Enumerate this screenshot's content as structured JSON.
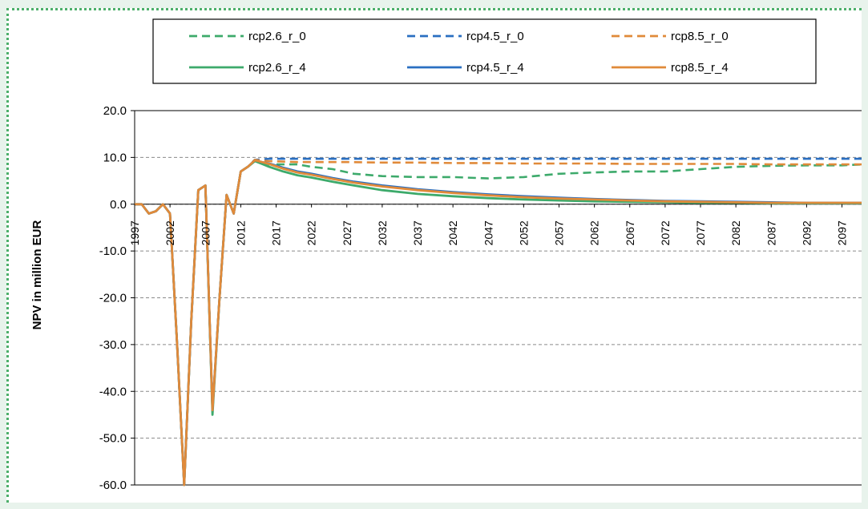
{
  "chart_data": {
    "type": "line",
    "ylabel": "NPV in million EUR",
    "ylim": [
      -60,
      20
    ],
    "yticks": [
      "20.0",
      "10.0",
      "0.0",
      "-10.0",
      "-20.0",
      "-30.0",
      "-40.0",
      "-50.0",
      "-60.0"
    ],
    "ytick_values": [
      20,
      10,
      0,
      -10,
      -20,
      -30,
      -40,
      -50,
      -60
    ],
    "xlim": [
      1997,
      2100
    ],
    "xticks": [
      "1997",
      "2002",
      "2007",
      "2012",
      "2017",
      "2022",
      "2027",
      "2032",
      "2037",
      "2042",
      "2047",
      "2052",
      "2057",
      "2062",
      "2067",
      "2072",
      "2077",
      "2082",
      "2087",
      "2092",
      "2097"
    ],
    "grid": "horizontal dashed",
    "legend_position": "top",
    "series": [
      {
        "name": "rcp2.6_r_0",
        "color": "#3daa6b",
        "dash": true,
        "x": [
          1997,
          1998,
          1999,
          2000,
          2001,
          2002,
          2003,
          2004,
          2005,
          2006,
          2007,
          2008,
          2009,
          2010,
          2011,
          2012,
          2013,
          2014,
          2015,
          2016,
          2018,
          2020,
          2022,
          2025,
          2028,
          2032,
          2037,
          2042,
          2047,
          2052,
          2057,
          2062,
          2067,
          2072,
          2077,
          2082,
          2087,
          2092,
          2097,
          2100
        ],
        "y": [
          0,
          0,
          -2,
          -1.5,
          0,
          -2,
          -30,
          -60,
          -25,
          3,
          4,
          -44,
          -20,
          2,
          -2,
          7,
          8,
          9.5,
          9,
          8.5,
          8.5,
          8.5,
          8,
          7.5,
          6.5,
          6,
          5.8,
          5.8,
          5.5,
          5.8,
          6.5,
          6.8,
          7,
          7,
          7.5,
          8,
          8.2,
          8.3,
          8.3,
          8.5
        ]
      },
      {
        "name": "rcp4.5_r_0",
        "color": "#2a6fc1",
        "dash": true,
        "x": [
          1997,
          1998,
          1999,
          2000,
          2001,
          2002,
          2003,
          2004,
          2005,
          2006,
          2007,
          2008,
          2009,
          2010,
          2011,
          2012,
          2013,
          2014,
          2015,
          2016,
          2018,
          2020,
          2022,
          2027,
          2032,
          2037,
          2042,
          2047,
          2052,
          2057,
          2062,
          2067,
          2072,
          2077,
          2082,
          2087,
          2092,
          2097,
          2100
        ],
        "y": [
          0,
          0,
          -2,
          -1.5,
          0,
          -2,
          -30,
          -60,
          -25,
          3,
          4,
          -44,
          -20,
          2,
          -2,
          7,
          8,
          9.5,
          9.6,
          9.7,
          9.7,
          9.7,
          9.7,
          9.7,
          9.7,
          9.7,
          9.7,
          9.7,
          9.7,
          9.7,
          9.7,
          9.7,
          9.7,
          9.7,
          9.7,
          9.7,
          9.7,
          9.7,
          9.7
        ]
      },
      {
        "name": "rcp8.5_r_0",
        "color": "#e08a3a",
        "dash": true,
        "x": [
          1997,
          1998,
          1999,
          2000,
          2001,
          2002,
          2003,
          2004,
          2005,
          2006,
          2007,
          2008,
          2009,
          2010,
          2011,
          2012,
          2013,
          2014,
          2015,
          2016,
          2018,
          2020,
          2022,
          2027,
          2032,
          2037,
          2042,
          2047,
          2052,
          2057,
          2062,
          2067,
          2072,
          2077,
          2082,
          2087,
          2092,
          2097,
          2100
        ],
        "y": [
          0,
          0,
          -2,
          -1.5,
          0,
          -2,
          -30,
          -60,
          -25,
          3,
          4,
          -44,
          -20,
          2,
          -2,
          7,
          8,
          9.5,
          9.3,
          9.2,
          9.1,
          9,
          9,
          9,
          8.9,
          8.9,
          8.8,
          8.8,
          8.7,
          8.7,
          8.7,
          8.6,
          8.6,
          8.6,
          8.6,
          8.5,
          8.5,
          8.5,
          8.5
        ]
      },
      {
        "name": "rcp2.6_r_4",
        "color": "#3daa6b",
        "dash": false,
        "x": [
          1997,
          1998,
          1999,
          2000,
          2001,
          2002,
          2003,
          2004,
          2005,
          2006,
          2007,
          2008,
          2009,
          2010,
          2011,
          2012,
          2013,
          2014,
          2015,
          2016,
          2018,
          2020,
          2022,
          2025,
          2028,
          2032,
          2037,
          2042,
          2047,
          2052,
          2057,
          2062,
          2067,
          2072,
          2077,
          2082,
          2087,
          2092,
          2097,
          2100
        ],
        "y": [
          0,
          0,
          -2,
          -1.5,
          0,
          -2,
          -30,
          -60,
          -25,
          3,
          4,
          -45,
          -20,
          2,
          -2,
          7,
          8,
          9.2,
          8.6,
          8,
          7,
          6.2,
          5.7,
          4.8,
          4,
          3,
          2.2,
          1.7,
          1.3,
          1,
          0.8,
          0.6,
          0.5,
          0.4,
          0.3,
          0.3,
          0.2,
          0.2,
          0.2,
          0.2
        ]
      },
      {
        "name": "rcp4.5_r_4",
        "color": "#2a6fc1",
        "dash": false,
        "x": [
          1997,
          1998,
          1999,
          2000,
          2001,
          2002,
          2003,
          2004,
          2005,
          2006,
          2007,
          2008,
          2009,
          2010,
          2011,
          2012,
          2013,
          2014,
          2015,
          2016,
          2018,
          2020,
          2022,
          2025,
          2028,
          2032,
          2037,
          2042,
          2047,
          2052,
          2057,
          2062,
          2067,
          2072,
          2077,
          2082,
          2087,
          2092,
          2097,
          2100
        ],
        "y": [
          0,
          0,
          -2,
          -1.5,
          0,
          -2,
          -30,
          -60,
          -25,
          3,
          4,
          -44,
          -20,
          2,
          -2,
          7,
          8,
          9.4,
          9,
          8.7,
          7.8,
          7,
          6.5,
          5.6,
          4.8,
          4,
          3.2,
          2.6,
          2.1,
          1.7,
          1.4,
          1.1,
          0.9,
          0.7,
          0.6,
          0.5,
          0.4,
          0.3,
          0.3,
          0.3
        ]
      },
      {
        "name": "rcp8.5_r_4",
        "color": "#e08a3a",
        "dash": false,
        "x": [
          1997,
          1998,
          1999,
          2000,
          2001,
          2002,
          2003,
          2004,
          2005,
          2006,
          2007,
          2008,
          2009,
          2010,
          2011,
          2012,
          2013,
          2014,
          2015,
          2016,
          2018,
          2020,
          2022,
          2025,
          2028,
          2032,
          2037,
          2042,
          2047,
          2052,
          2057,
          2062,
          2067,
          2072,
          2077,
          2082,
          2087,
          2092,
          2097,
          2100
        ],
        "y": [
          0,
          0,
          -2,
          -1.5,
          0,
          -2,
          -30,
          -60,
          -25,
          3,
          4,
          -44,
          -20,
          2,
          -2,
          7,
          8,
          9.4,
          9,
          8.6,
          7.6,
          6.8,
          6.3,
          5.4,
          4.6,
          3.8,
          3,
          2.4,
          1.9,
          1.5,
          1.2,
          1,
          0.8,
          0.6,
          0.5,
          0.4,
          0.3,
          0.3,
          0.3,
          0.3
        ]
      }
    ]
  }
}
